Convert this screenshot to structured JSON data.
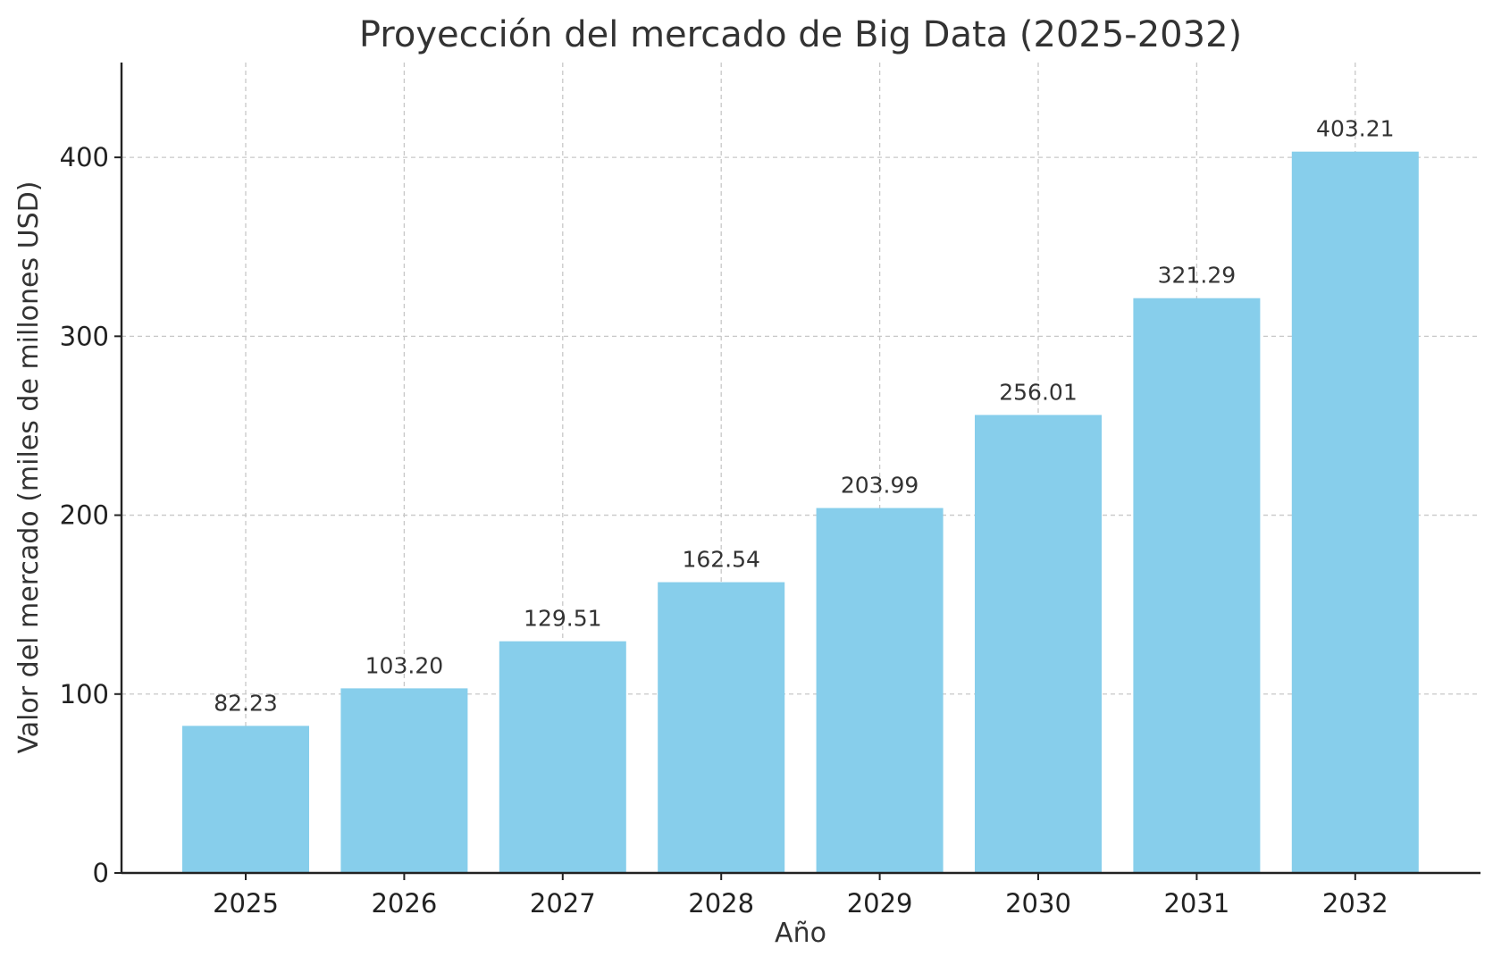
{
  "chart_data": {
    "type": "bar",
    "title": "Proyección del mercado de Big Data (2025-2032)",
    "xlabel": "Año",
    "ylabel": "Valor del mercado (miles de millones USD)",
    "categories": [
      "2025",
      "2026",
      "2027",
      "2028",
      "2029",
      "2030",
      "2031",
      "2032"
    ],
    "values": [
      82.23,
      103.2,
      129.51,
      162.54,
      203.99,
      256.01,
      321.29,
      403.21
    ],
    "value_labels": [
      "82.23",
      "103.20",
      "129.51",
      "162.54",
      "203.99",
      "256.01",
      "321.29",
      "403.21"
    ],
    "ylim": [
      0,
      453
    ],
    "yticks": [
      0,
      100,
      200,
      300,
      400
    ],
    "ytick_labels": [
      "0",
      "100",
      "200",
      "300",
      "400"
    ],
    "grid": true,
    "bar_color": "#87CEEB"
  }
}
